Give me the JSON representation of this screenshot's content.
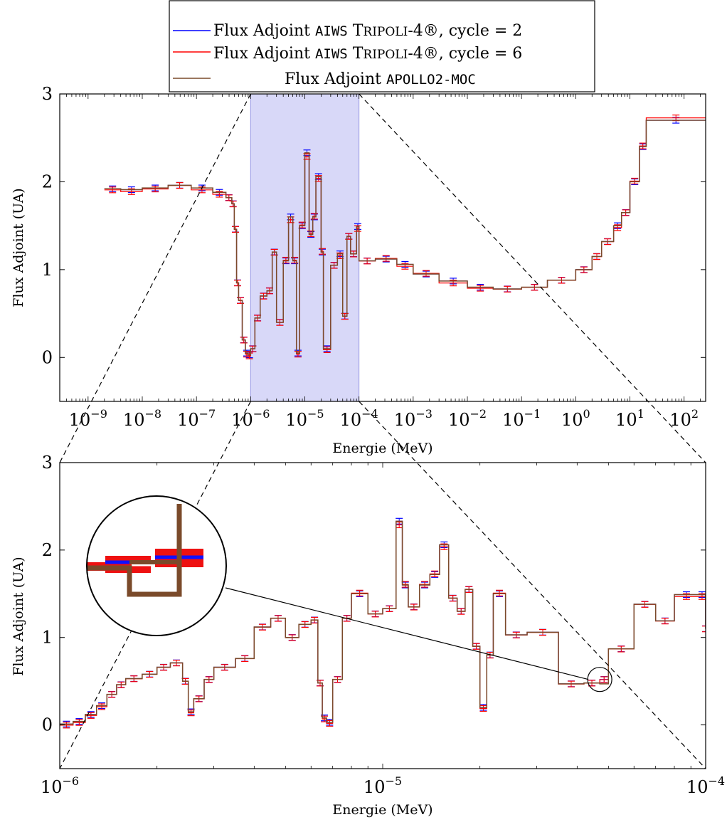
{
  "chart_data": [
    {
      "type": "line",
      "panel": "overview",
      "xscale": "log",
      "xlim": [
        3e-10,
        250
      ],
      "ylim": [
        -0.5,
        3
      ],
      "xlabel": "Energie (MeV)",
      "ylabel": "Flux Adjoint (UA)",
      "x_ticks": [
        "10^-9",
        "10^-8",
        "10^-7",
        "10^-6",
        "10^-5",
        "10^-4",
        "10^-3",
        "10^-2",
        "10^-1",
        "10^0",
        "10^1",
        "10^2"
      ],
      "y_ticks": [
        "0",
        "1",
        "2",
        "3"
      ],
      "highlight_range": [
        1e-06,
        0.0001
      ],
      "x": [
        2e-09,
        4e-09,
        1e-08,
        3e-08,
        8e-08,
        2e-07,
        3.5e-07,
        4.5e-07,
        5e-07,
        5.5e-07,
        6e-07,
        7e-07,
        8e-07,
        9e-07,
        1e-06,
        1.2e-06,
        1.5e-06,
        2e-06,
        2.5e-06,
        3e-06,
        4e-06,
        5e-06,
        6e-06,
        7e-06,
        8e-06,
        1e-05,
        1.2e-05,
        1.4e-05,
        1.6e-05,
        2e-05,
        2.2e-05,
        3e-05,
        4e-05,
        5e-05,
        6e-05,
        7e-05,
        9e-05,
        0.0001,
        0.0002,
        0.0005,
        0.001,
        0.003,
        0.01,
        0.03,
        0.1,
        0.3,
        1,
        2,
        3,
        5,
        7,
        10,
        15,
        20
      ],
      "series": [
        {
          "name": "Flux Adjoint AIWS Tripoli-4®, cycle = 2",
          "color": "#0000ff",
          "values": [
            1.92,
            1.91,
            1.93,
            1.96,
            1.93,
            1.88,
            1.82,
            1.75,
            1.46,
            0.85,
            0.65,
            0.2,
            0.05,
            0.03,
            0.1,
            0.45,
            0.7,
            0.76,
            1.2,
            0.4,
            1.1,
            1.6,
            1.1,
            0.05,
            1.5,
            2.33,
            1.4,
            1.6,
            2.06,
            1.2,
            0.1,
            1.05,
            1.18,
            0.47,
            1.38,
            1.18,
            1.49,
            1.1,
            1.12,
            1.06,
            0.95,
            0.87,
            0.8,
            0.78,
            0.8,
            0.88,
            1.0,
            1.15,
            1.32,
            1.5,
            1.65,
            2.0,
            2.4,
            2.7
          ]
        },
        {
          "name": "Flux Adjoint AIWS Tripoli-4®, cycle = 6",
          "color": "#ff0000",
          "values": [
            1.92,
            1.9,
            1.93,
            1.97,
            1.92,
            1.87,
            1.83,
            1.76,
            1.47,
            0.86,
            0.66,
            0.21,
            0.05,
            0.03,
            0.11,
            0.46,
            0.71,
            0.77,
            1.21,
            0.41,
            1.12,
            1.58,
            1.12,
            0.05,
            1.52,
            2.3,
            1.42,
            1.62,
            2.05,
            1.22,
            0.1,
            1.06,
            1.17,
            0.48,
            1.39,
            1.19,
            1.48,
            1.11,
            1.14,
            1.05,
            0.97,
            0.86,
            0.8,
            0.79,
            0.81,
            0.89,
            1.01,
            1.16,
            1.33,
            1.49,
            1.66,
            2.02,
            2.42,
            2.74
          ]
        },
        {
          "name": "Flux Adjoint APOLLO2-MOC",
          "color": "#7a4a2a",
          "values": [
            1.92,
            1.91,
            1.93,
            1.96,
            1.93,
            1.88,
            1.82,
            1.75,
            1.46,
            0.85,
            0.65,
            0.2,
            0.05,
            0.03,
            0.1,
            0.45,
            0.7,
            0.76,
            1.2,
            0.4,
            1.1,
            1.6,
            1.1,
            0.05,
            1.5,
            2.33,
            1.4,
            1.6,
            2.06,
            1.2,
            0.1,
            1.05,
            1.18,
            0.47,
            1.38,
            1.18,
            1.49,
            1.1,
            1.12,
            1.06,
            0.95,
            0.87,
            0.8,
            0.78,
            0.8,
            0.88,
            1.0,
            1.15,
            1.32,
            1.5,
            1.65,
            2.0,
            2.4,
            2.7
          ]
        }
      ]
    },
    {
      "type": "line",
      "panel": "zoom",
      "xscale": "log",
      "xlim": [
        1e-06,
        0.0001
      ],
      "ylim": [
        -0.5,
        3
      ],
      "xlabel": "Energie (MeV)",
      "ylabel": "Flux Adjoint (UA)",
      "x_ticks": [
        "10^-6",
        "10^-5",
        "10^-4"
      ],
      "y_ticks": [
        "0",
        "1",
        "2",
        "3"
      ],
      "inset_zoom_at": [
        4.7e-05,
        0.52
      ],
      "x": [
        1e-06,
        1.1e-06,
        1.2e-06,
        1.3e-06,
        1.4e-06,
        1.5e-06,
        1.6e-06,
        1.8e-06,
        2e-06,
        2.2e-06,
        2.4e-06,
        2.5e-06,
        2.6e-06,
        2.8e-06,
        3e-06,
        3.5e-06,
        4e-06,
        4.5e-06,
        5e-06,
        5.5e-06,
        6e-06,
        6.3e-06,
        6.5e-06,
        6.7e-06,
        7e-06,
        7.5e-06,
        8e-06,
        9e-06,
        1e-05,
        1.1e-05,
        1.15e-05,
        1.2e-05,
        1.3e-05,
        1.4e-05,
        1.5e-05,
        1.6e-05,
        1.7e-05,
        1.8e-05,
        1.9e-05,
        2e-05,
        2.1e-05,
        2.2e-05,
        2.4e-05,
        2.8e-05,
        3.5e-05,
        4.2e-05,
        4.7e-05,
        5e-05,
        6e-05,
        7e-05,
        8e-05,
        9.5e-05,
        0.0001
      ],
      "series": [
        {
          "name": "Flux Adjoint AIWS Tripoli-4®, cycle = 2",
          "color": "#0000ff",
          "values": [
            0.01,
            0.04,
            0.12,
            0.22,
            0.35,
            0.46,
            0.53,
            0.58,
            0.66,
            0.71,
            0.5,
            0.15,
            0.3,
            0.52,
            0.66,
            0.76,
            1.12,
            1.22,
            1.0,
            1.15,
            1.2,
            0.48,
            0.08,
            0.03,
            0.52,
            1.22,
            1.5,
            1.27,
            1.33,
            2.33,
            1.6,
            1.35,
            1.6,
            1.72,
            2.06,
            1.45,
            1.3,
            1.55,
            0.9,
            0.2,
            0.8,
            1.5,
            1.03,
            1.06,
            0.47,
            0.48,
            0.52,
            0.87,
            1.38,
            1.19,
            1.49,
            1.49,
            1.1
          ]
        },
        {
          "name": "Flux Adjoint AIWS Tripoli-4®, cycle = 6",
          "color": "#ff0000",
          "values": [
            0.01,
            0.04,
            0.12,
            0.22,
            0.36,
            0.47,
            0.54,
            0.59,
            0.67,
            0.72,
            0.51,
            0.15,
            0.31,
            0.53,
            0.67,
            0.77,
            1.13,
            1.23,
            1.01,
            1.16,
            1.21,
            0.49,
            0.08,
            0.03,
            0.53,
            1.23,
            1.52,
            1.28,
            1.34,
            2.3,
            1.62,
            1.36,
            1.62,
            1.74,
            2.05,
            1.46,
            1.31,
            1.56,
            0.91,
            0.2,
            0.81,
            1.52,
            1.04,
            1.07,
            0.48,
            0.49,
            0.53,
            0.88,
            1.39,
            1.2,
            1.48,
            1.48,
            1.11
          ]
        },
        {
          "name": "Flux Adjoint APOLLO2-MOC",
          "color": "#7a4a2a",
          "values": [
            0.01,
            0.04,
            0.12,
            0.22,
            0.35,
            0.46,
            0.53,
            0.58,
            0.66,
            0.71,
            0.5,
            0.15,
            0.3,
            0.52,
            0.66,
            0.76,
            1.12,
            1.22,
            1.0,
            1.15,
            1.2,
            0.48,
            0.08,
            0.03,
            0.52,
            1.22,
            1.5,
            1.27,
            1.33,
            2.33,
            1.6,
            1.35,
            1.6,
            1.72,
            2.06,
            1.45,
            1.3,
            1.55,
            0.9,
            0.2,
            0.8,
            1.5,
            1.03,
            1.06,
            0.47,
            0.48,
            0.47,
            0.87,
            1.38,
            1.19,
            1.49,
            1.49,
            1.1
          ]
        }
      ]
    }
  ],
  "legend": {
    "entry1": {
      "main": "Flux Adjoint ",
      "code": "AIWS",
      "tripoli_T": "T",
      "tripoli_rest": "RIPOLI",
      "tripoli_tail": "-4®, cycle = 2"
    },
    "entry2": {
      "main": "Flux Adjoint ",
      "code": "AIWS",
      "tripoli_T": "T",
      "tripoli_rest": "RIPOLI",
      "tripoli_tail": "-4®, cycle = 6"
    },
    "entry3": {
      "main": "Flux Adjoint ",
      "code": "APOLLO2-MOC"
    }
  }
}
